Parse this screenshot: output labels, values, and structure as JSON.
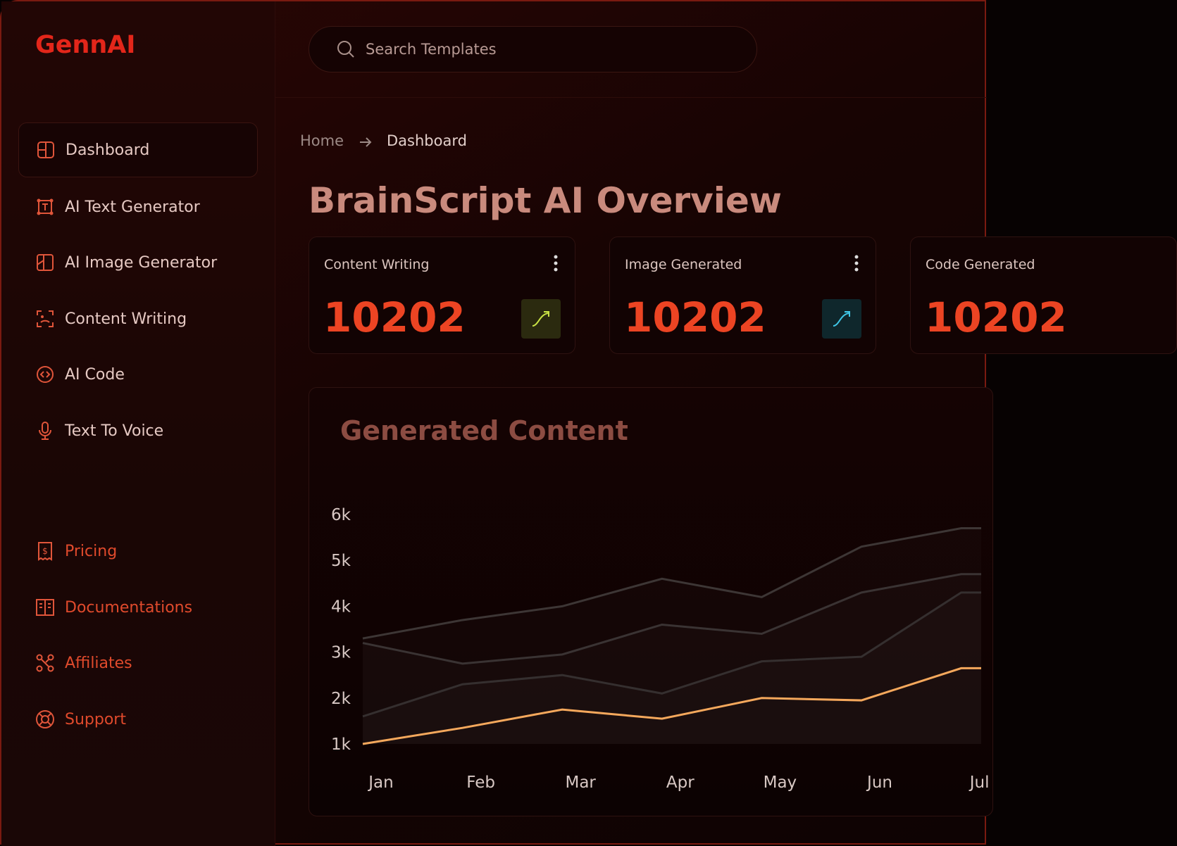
{
  "sidebar": {
    "logo": "GennAI",
    "nav": [
      "Dashboard",
      "AI Text Generator",
      "AI Image Generator",
      "Content Writing",
      "AI Code",
      "Text To Voice"
    ],
    "secondary": [
      "Pricing",
      "Documentations",
      "Affiliates",
      "Support"
    ]
  },
  "search": {
    "placeholder": "Search Templates"
  },
  "breadcrumb": [
    "Home",
    "Dashboard"
  ],
  "title": "BrainScript AI Overview",
  "cards": [
    {
      "label": "Content Writing",
      "value": 10202
    },
    {
      "label": "Image Generated",
      "value": 10202
    },
    {
      "label": "Code Generated",
      "value": 10202
    }
  ],
  "chart_data": {
    "type": "line",
    "title": "Generated Content",
    "categories": [
      "Jan",
      "Feb",
      "Mar",
      "Apr",
      "May",
      "Jun",
      "Jul"
    ],
    "series": [
      {
        "color": "#3d3635",
        "values": [
          3300,
          3700,
          4000,
          4600,
          4200,
          5300,
          5700
        ]
      },
      {
        "color": "#3a3333",
        "values": [
          3200,
          2750,
          2950,
          3600,
          3400,
          4300,
          4700
        ]
      },
      {
        "color": "#352f2f",
        "values": [
          1600,
          2300,
          2500,
          2100,
          2800,
          2900,
          4300
        ]
      },
      {
        "color": "#f5a85c",
        "values": [
          1000,
          1350,
          1750,
          1550,
          2000,
          1950,
          2650
        ]
      }
    ],
    "ylim": [
      1000,
      6000
    ],
    "yticks": [
      {
        "value": 1000,
        "label": "1k"
      },
      {
        "value": 2000,
        "label": "2k"
      },
      {
        "value": 3000,
        "label": "3k"
      },
      {
        "value": 4000,
        "label": "4k"
      },
      {
        "value": 5000,
        "label": "5k"
      },
      {
        "value": 6000,
        "label": "6k"
      }
    ]
  }
}
